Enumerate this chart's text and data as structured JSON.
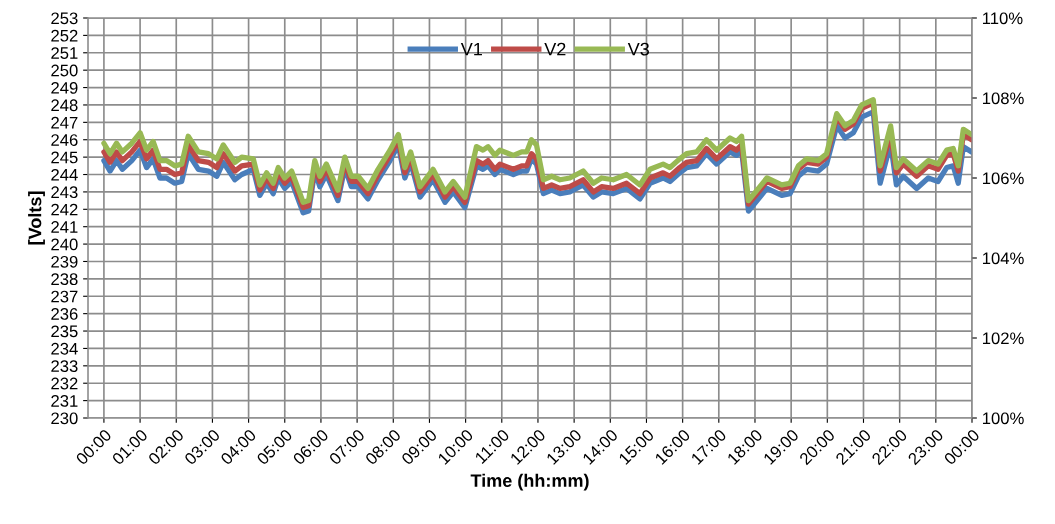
{
  "chart_data": {
    "type": "line",
    "xlabel": "Time (hh:mm)",
    "ylabel": "[Volts]",
    "x": [
      0,
      0.17,
      0.35,
      0.51,
      0.77,
      1.0,
      1.18,
      1.36,
      1.55,
      1.73,
      1.96,
      2.15,
      2.33,
      2.61,
      2.89,
      3.12,
      3.3,
      3.62,
      3.81,
      4.13,
      4.31,
      4.5,
      4.68,
      4.82,
      5.0,
      5.19,
      5.51,
      5.66,
      5.83,
      5.97,
      6.15,
      6.47,
      6.66,
      6.84,
      7.03,
      7.3,
      7.58,
      7.91,
      8.14,
      8.32,
      8.48,
      8.74,
      9.1,
      9.43,
      9.66,
      9.98,
      10.3,
      10.48,
      10.62,
      10.81,
      10.95,
      11.32,
      11.55,
      11.69,
      11.82,
      11.96,
      12.15,
      12.38,
      12.61,
      12.88,
      13.25,
      13.53,
      13.76,
      14.08,
      14.45,
      14.82,
      15.1,
      15.46,
      15.65,
      15.92,
      16.11,
      16.39,
      16.66,
      16.94,
      17.31,
      17.49,
      17.63,
      17.82,
      18.33,
      18.74,
      18.97,
      19.2,
      19.43,
      19.75,
      19.98,
      20.26,
      20.49,
      20.72,
      20.95,
      21.27,
      21.46,
      21.75,
      21.91,
      22.1,
      22.47,
      22.79,
      23.06,
      23.3,
      23.48,
      23.62,
      23.76,
      23.99
    ],
    "series": [
      {
        "name": "V1",
        "color": "#4a7ebb",
        "values": [
          244.8,
          244.2,
          244.8,
          244.3,
          244.8,
          245.4,
          244.4,
          244.9,
          243.8,
          243.8,
          243.5,
          243.6,
          245.2,
          244.3,
          244.2,
          243.9,
          244.7,
          243.7,
          244.0,
          244.3,
          242.8,
          243.5,
          242.9,
          243.8,
          243.2,
          243.6,
          241.8,
          241.9,
          244.2,
          243.3,
          244.0,
          242.5,
          244.4,
          243.3,
          243.3,
          242.6,
          243.7,
          244.8,
          245.7,
          243.8,
          244.7,
          242.7,
          243.7,
          242.4,
          243.0,
          242.1,
          244.5,
          244.3,
          244.5,
          244.0,
          244.3,
          244.0,
          244.2,
          244.2,
          244.9,
          244.6,
          242.9,
          243.1,
          242.9,
          243.0,
          243.4,
          242.7,
          243.0,
          242.9,
          243.2,
          242.6,
          243.5,
          243.8,
          243.6,
          244.1,
          244.4,
          244.5,
          245.2,
          244.6,
          245.3,
          245.1,
          245.4,
          241.9,
          243.2,
          242.8,
          242.9,
          243.9,
          244.3,
          244.2,
          244.6,
          246.8,
          246.1,
          246.4,
          247.3,
          247.6,
          243.5,
          245.8,
          243.4,
          243.9,
          243.2,
          243.8,
          243.6,
          244.4,
          244.5,
          243.5,
          245.6,
          245.3
        ]
      },
      {
        "name": "V2",
        "color": "#be4b48",
        "values": [
          245.3,
          244.7,
          245.3,
          244.8,
          245.3,
          245.9,
          244.9,
          245.4,
          244.3,
          244.3,
          244.0,
          244.1,
          245.7,
          244.8,
          244.7,
          244.4,
          245.2,
          244.2,
          244.5,
          244.6,
          243.1,
          243.8,
          243.2,
          244.1,
          243.5,
          243.9,
          242.1,
          242.2,
          244.5,
          243.6,
          244.3,
          242.8,
          244.7,
          243.6,
          243.6,
          242.9,
          244.0,
          245.1,
          246.0,
          244.1,
          245.0,
          243.0,
          244.0,
          242.7,
          243.3,
          242.4,
          244.8,
          244.6,
          244.8,
          244.3,
          244.6,
          244.3,
          244.5,
          244.5,
          245.2,
          244.9,
          243.2,
          243.4,
          243.2,
          243.3,
          243.7,
          243.0,
          243.3,
          243.2,
          243.5,
          242.9,
          243.8,
          244.1,
          243.9,
          244.4,
          244.7,
          244.8,
          245.5,
          244.9,
          245.6,
          245.4,
          245.7,
          242.3,
          243.6,
          243.2,
          243.3,
          244.3,
          244.7,
          244.6,
          245.0,
          247.3,
          246.6,
          246.9,
          247.8,
          248.1,
          244.2,
          246.3,
          244.1,
          244.6,
          243.9,
          244.5,
          244.3,
          245.1,
          245.2,
          244.2,
          246.3,
          246.0
        ]
      },
      {
        "name": "V3",
        "color": "#98b954",
        "values": [
          245.8,
          245.2,
          245.8,
          245.3,
          245.8,
          246.4,
          245.4,
          245.9,
          244.8,
          244.8,
          244.5,
          244.6,
          246.2,
          245.3,
          245.2,
          244.9,
          245.7,
          244.7,
          245.0,
          244.9,
          243.4,
          244.1,
          243.5,
          244.4,
          243.8,
          244.2,
          242.4,
          242.5,
          244.8,
          243.9,
          244.6,
          243.1,
          245.0,
          243.9,
          243.9,
          243.2,
          244.3,
          245.4,
          246.3,
          244.4,
          245.3,
          243.3,
          244.3,
          243.0,
          243.6,
          242.7,
          245.6,
          245.4,
          245.6,
          245.1,
          245.4,
          245.1,
          245.3,
          245.3,
          246.0,
          245.7,
          243.7,
          243.9,
          243.7,
          243.8,
          244.2,
          243.5,
          243.8,
          243.7,
          244.0,
          243.4,
          244.3,
          244.6,
          244.4,
          244.9,
          245.2,
          245.3,
          246.0,
          245.4,
          246.1,
          245.9,
          246.2,
          242.5,
          243.8,
          243.4,
          243.5,
          244.5,
          244.9,
          244.8,
          245.2,
          247.5,
          246.8,
          247.1,
          248.0,
          248.3,
          244.5,
          246.8,
          244.4,
          244.9,
          244.2,
          244.8,
          244.6,
          245.4,
          245.5,
          244.5,
          246.6,
          246.3
        ]
      }
    ],
    "xlim": [
      -0.44,
      24
    ],
    "xticks": [
      {
        "value": 0,
        "label": "00:00"
      },
      {
        "value": 1,
        "label": "01:00"
      },
      {
        "value": 2,
        "label": "02:00"
      },
      {
        "value": 3,
        "label": "03:00"
      },
      {
        "value": 4,
        "label": "04:00"
      },
      {
        "value": 5,
        "label": "05:00"
      },
      {
        "value": 6,
        "label": "06:00"
      },
      {
        "value": 7,
        "label": "07:00"
      },
      {
        "value": 8,
        "label": "08:00"
      },
      {
        "value": 9,
        "label": "09:00"
      },
      {
        "value": 10,
        "label": "10:00"
      },
      {
        "value": 11,
        "label": "11:00"
      },
      {
        "value": 12,
        "label": "12:00"
      },
      {
        "value": 13,
        "label": "13:00"
      },
      {
        "value": 14,
        "label": "14:00"
      },
      {
        "value": 15,
        "label": "15:00"
      },
      {
        "value": 16,
        "label": "16:00"
      },
      {
        "value": 17,
        "label": "17:00"
      },
      {
        "value": 18,
        "label": "18:00"
      },
      {
        "value": 19,
        "label": "19:00"
      },
      {
        "value": 20,
        "label": "20:00"
      },
      {
        "value": 21,
        "label": "21:00"
      },
      {
        "value": 22,
        "label": "22:00"
      },
      {
        "value": 23,
        "label": "23:00"
      },
      {
        "value": 24,
        "label": "00:00"
      }
    ],
    "ylim": [
      230,
      253
    ],
    "yticks": [
      230,
      231,
      232,
      233,
      234,
      235,
      236,
      237,
      238,
      239,
      240,
      241,
      242,
      243,
      244,
      245,
      246,
      247,
      248,
      249,
      250,
      251,
      252,
      253
    ],
    "y2lim": [
      100,
      110
    ],
    "y2ticks": [
      {
        "value": 100,
        "label": "100%"
      },
      {
        "value": 102,
        "label": "102%"
      },
      {
        "value": 104,
        "label": "104%"
      },
      {
        "value": 106,
        "label": "106%"
      },
      {
        "value": 108,
        "label": "108%"
      },
      {
        "value": 110,
        "label": "110%"
      }
    ],
    "grid": true,
    "legend": "top",
    "marker": "none",
    "line_style": "solid"
  }
}
